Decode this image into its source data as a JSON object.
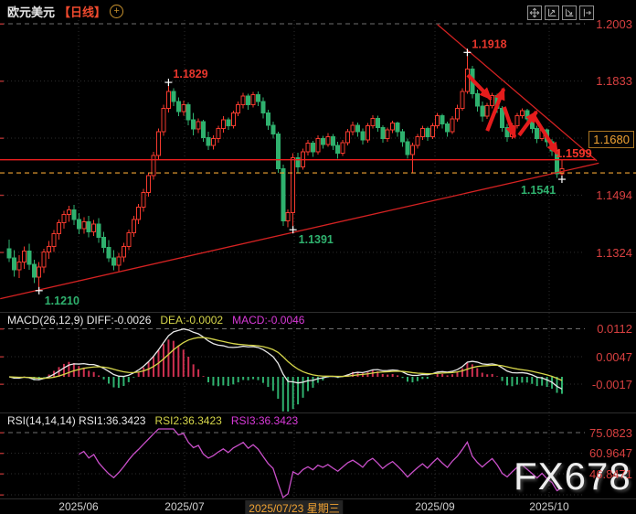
{
  "header": {
    "title": "欧元美元",
    "period": "【日线】",
    "crosshair_glyph": "+"
  },
  "toolbar": {
    "buttons": [
      {
        "name": "move-tool"
      },
      {
        "name": "y-axis-scale"
      },
      {
        "name": "x-axis-scale"
      },
      {
        "name": "shift-right"
      }
    ]
  },
  "main_chart": {
    "price_axis_labels": [
      "1.2003",
      "1.1833",
      "1.1494",
      "1.1324"
    ],
    "current_price_label": "1.1680",
    "support_label": "1.1599"
  },
  "macd": {
    "header": "MACD(26,12,9) DIFF:-0.0026",
    "dea_label": "DEA:-0.0002",
    "macd_label": "MACD:-0.0046",
    "axis_labels": [
      "0.0112",
      "0.0047",
      "-0.0017"
    ]
  },
  "rsi": {
    "header": "RSI(14,14,14) RSI1:36.3423",
    "rsi2_label": "RSI2:36.3423",
    "rsi3_label": "RSI3:36.3423",
    "axis_labels": [
      "75.0823",
      "60.9647",
      "46.8471"
    ]
  },
  "time_axis": {
    "labels": [
      "2025/06",
      "2025/07",
      "2025/09",
      "2025/10"
    ],
    "highlight_label": "2025/07/23 星期三"
  },
  "watermark": "FX678",
  "colors": {
    "up": "#f53a2e",
    "down": "#2fb16e",
    "axis_red": "#d84040",
    "accent_orange": "#f0a232",
    "support_red": "#ef1f1f",
    "trend_red": "#d42222",
    "annotation_red": "#e51c1c",
    "diff_white": "#e8e8e8",
    "dea_yellow": "#d6d64a",
    "hist_pos": "#cf3050",
    "hist_neg": "#2fb16e",
    "rsi_magenta": "#c94fc9",
    "marker_white": "#ffffff"
  },
  "chart_data": {
    "type": "candlestick",
    "title": "欧元美元 日线",
    "y_axis": {
      "ticks": [
        1.2003,
        1.1833,
        1.1494,
        1.1324
      ],
      "ylim": [
        1.1147,
        1.2014
      ],
      "current_price": 1.168
    },
    "x_axis": {
      "labels": [
        "2025/06",
        "2025/07",
        "2025/07/23 星期三",
        "2025/09",
        "2025/10"
      ]
    },
    "candles": [
      [
        1.1335,
        1.1362,
        1.1295,
        1.1308
      ],
      [
        1.1308,
        1.133,
        1.1252,
        1.1272
      ],
      [
        1.1272,
        1.1315,
        1.1248,
        1.1295
      ],
      [
        1.1295,
        1.1342,
        1.1275,
        1.1328
      ],
      [
        1.1328,
        1.135,
        1.1272,
        1.1288
      ],
      [
        1.1288,
        1.1302,
        1.1232,
        1.125
      ],
      [
        1.125,
        1.1295,
        1.121,
        1.128
      ],
      [
        1.128,
        1.1335,
        1.1262,
        1.1325
      ],
      [
        1.1325,
        1.1358,
        1.1305,
        1.1342
      ],
      [
        1.1342,
        1.139,
        1.1325,
        1.138
      ],
      [
        1.138,
        1.1422,
        1.1362,
        1.1412
      ],
      [
        1.1412,
        1.1448,
        1.1395,
        1.1436
      ],
      [
        1.1436,
        1.1462,
        1.1415,
        1.145
      ],
      [
        1.145,
        1.1465,
        1.1405,
        1.1422
      ],
      [
        1.1422,
        1.144,
        1.1378,
        1.1395
      ],
      [
        1.1395,
        1.1428,
        1.138,
        1.1415
      ],
      [
        1.1415,
        1.1432,
        1.1368,
        1.1385
      ],
      [
        1.1385,
        1.142,
        1.1372,
        1.1408
      ],
      [
        1.1408,
        1.1425,
        1.1352,
        1.1368
      ],
      [
        1.1368,
        1.1385,
        1.1322,
        1.1338
      ],
      [
        1.1338,
        1.136,
        1.1295,
        1.1308
      ],
      [
        1.1308,
        1.133,
        1.127,
        1.1285
      ],
      [
        1.1285,
        1.1322,
        1.1268,
        1.131
      ],
      [
        1.131,
        1.1352,
        1.1295,
        1.1342
      ],
      [
        1.1342,
        1.1392,
        1.133,
        1.1382
      ],
      [
        1.1382,
        1.1432,
        1.137,
        1.1422
      ],
      [
        1.1422,
        1.1468,
        1.1408,
        1.1458
      ],
      [
        1.1458,
        1.1512,
        1.1445,
        1.1502
      ],
      [
        1.1502,
        1.1562,
        1.149,
        1.1552
      ],
      [
        1.1552,
        1.1622,
        1.154,
        1.1612
      ],
      [
        1.1612,
        1.1692,
        1.16,
        1.1682
      ],
      [
        1.1682,
        1.1762,
        1.167,
        1.1752
      ],
      [
        1.1752,
        1.1829,
        1.174,
        1.1802
      ],
      [
        1.1802,
        1.1812,
        1.1758,
        1.1772
      ],
      [
        1.1772,
        1.1785,
        1.1728,
        1.1742
      ],
      [
        1.1742,
        1.1775,
        1.173,
        1.1762
      ],
      [
        1.1762,
        1.177,
        1.1702,
        1.1718
      ],
      [
        1.1718,
        1.1738,
        1.1672,
        1.169
      ],
      [
        1.169,
        1.1722,
        1.1678,
        1.1712
      ],
      [
        1.1712,
        1.1718,
        1.1652,
        1.1665
      ],
      [
        1.1665,
        1.1682,
        1.1628,
        1.1642
      ],
      [
        1.1642,
        1.1672,
        1.163,
        1.1662
      ],
      [
        1.1662,
        1.17,
        1.165,
        1.1692
      ],
      [
        1.1692,
        1.1728,
        1.168,
        1.1718
      ],
      [
        1.1718,
        1.1725,
        1.1688,
        1.17
      ],
      [
        1.17,
        1.1745,
        1.1692,
        1.1738
      ],
      [
        1.1738,
        1.1772,
        1.1728,
        1.1762
      ],
      [
        1.1762,
        1.1798,
        1.1752,
        1.1788
      ],
      [
        1.1788,
        1.1795,
        1.1748,
        1.1762
      ],
      [
        1.1762,
        1.18,
        1.1755,
        1.1792
      ],
      [
        1.1792,
        1.1802,
        1.1758,
        1.1772
      ],
      [
        1.1772,
        1.1785,
        1.1722,
        1.1738
      ],
      [
        1.1738,
        1.1748,
        1.1688,
        1.1702
      ],
      [
        1.1702,
        1.1712,
        1.1662,
        1.1675
      ],
      [
        1.1675,
        1.1682,
        1.156,
        1.1572
      ],
      [
        1.1572,
        1.1585,
        1.1402,
        1.1418
      ],
      [
        1.1418,
        1.1452,
        1.1398,
        1.1442
      ],
      [
        1.1442,
        1.1618,
        1.1391,
        1.1605
      ],
      [
        1.1605,
        1.162,
        1.1562,
        1.1578
      ],
      [
        1.1578,
        1.1632,
        1.157,
        1.1622
      ],
      [
        1.1622,
        1.1658,
        1.1612,
        1.1648
      ],
      [
        1.1648,
        1.1655,
        1.1608,
        1.1622
      ],
      [
        1.1622,
        1.1672,
        1.1615,
        1.1662
      ],
      [
        1.1662,
        1.167,
        1.1632,
        1.1645
      ],
      [
        1.1645,
        1.1678,
        1.1638,
        1.1668
      ],
      [
        1.1668,
        1.1675,
        1.1628,
        1.1642
      ],
      [
        1.1642,
        1.1652,
        1.1602,
        1.1618
      ],
      [
        1.1618,
        1.1658,
        1.161,
        1.165
      ],
      [
        1.165,
        1.169,
        1.1642,
        1.1682
      ],
      [
        1.1682,
        1.1712,
        1.1672,
        1.1702
      ],
      [
        1.1702,
        1.171,
        1.1668,
        1.1682
      ],
      [
        1.1682,
        1.1692,
        1.1645,
        1.1658
      ],
      [
        1.1658,
        1.1708,
        1.165,
        1.17
      ],
      [
        1.17,
        1.1732,
        1.1692,
        1.1722
      ],
      [
        1.1722,
        1.173,
        1.1682,
        1.1695
      ],
      [
        1.1695,
        1.1702,
        1.165,
        1.1662
      ],
      [
        1.1662,
        1.1695,
        1.1652,
        1.1688
      ],
      [
        1.1688,
        1.1715,
        1.1678,
        1.1708
      ],
      [
        1.1708,
        1.1712,
        1.1668,
        1.1682
      ],
      [
        1.1682,
        1.169,
        1.1638,
        1.1652
      ],
      [
        1.1652,
        1.1662,
        1.1602,
        1.1615
      ],
      [
        1.1615,
        1.165,
        1.1562,
        1.1642
      ],
      [
        1.1642,
        1.1675,
        1.1632,
        1.1668
      ],
      [
        1.1668,
        1.17,
        1.1658,
        1.1692
      ],
      [
        1.1692,
        1.1698,
        1.1655,
        1.1668
      ],
      [
        1.1668,
        1.1708,
        1.166,
        1.17
      ],
      [
        1.17,
        1.1738,
        1.1692,
        1.173
      ],
      [
        1.173,
        1.1736,
        1.1692,
        1.1705
      ],
      [
        1.1705,
        1.1712,
        1.1668,
        1.1682
      ],
      [
        1.1682,
        1.1728,
        1.1675,
        1.172
      ],
      [
        1.172,
        1.1762,
        1.1712,
        1.1752
      ],
      [
        1.1752,
        1.1812,
        1.1745,
        1.1802
      ],
      [
        1.1802,
        1.1918,
        1.1795,
        1.1868
      ],
      [
        1.1868,
        1.1878,
        1.1782,
        1.1795
      ],
      [
        1.1795,
        1.1808,
        1.1742,
        1.1758
      ],
      [
        1.1758,
        1.1772,
        1.1712,
        1.1728
      ],
      [
        1.1728,
        1.1768,
        1.172,
        1.176
      ],
      [
        1.176,
        1.1798,
        1.1752,
        1.179
      ],
      [
        1.179,
        1.1795,
        1.1738,
        1.1752
      ],
      [
        1.1752,
        1.1758,
        1.1682,
        1.1695
      ],
      [
        1.1695,
        1.1705,
        1.1652,
        1.1668
      ],
      [
        1.1668,
        1.1708,
        1.166,
        1.17
      ],
      [
        1.17,
        1.1738,
        1.1692,
        1.173
      ],
      [
        1.173,
        1.1752,
        1.1722,
        1.1745
      ],
      [
        1.1745,
        1.175,
        1.1708,
        1.172
      ],
      [
        1.172,
        1.1728,
        1.1678,
        1.1692
      ],
      [
        1.1692,
        1.17,
        1.1648,
        1.1662
      ],
      [
        1.1662,
        1.1695,
        1.1655,
        1.1688
      ],
      [
        1.1688,
        1.1692,
        1.1638,
        1.1652
      ],
      [
        1.1652,
        1.166,
        1.161,
        1.1625
      ],
      [
        1.1625,
        1.1632,
        1.1545,
        1.1558
      ],
      [
        1.1558,
        1.1599,
        1.1541,
        1.1572
      ]
    ],
    "extremes": [
      {
        "index": 32,
        "price": 1.1829,
        "label": "1.1829",
        "kind": "high",
        "label_pos": "above-right"
      },
      {
        "index": 6,
        "price": 1.121,
        "label": "1.1210",
        "kind": "low",
        "label_pos": "below-right"
      },
      {
        "index": 57,
        "price": 1.1391,
        "label": "1.1391",
        "kind": "low",
        "label_pos": "below-right"
      },
      {
        "index": 92,
        "price": 1.1918,
        "label": "1.1918",
        "kind": "high",
        "label_pos": "above-right"
      },
      {
        "index": 111,
        "price": 1.1541,
        "label": "1.1541",
        "kind": "low",
        "label_pos": "below-left"
      }
    ],
    "drawings": {
      "support_line": {
        "price": 1.1599,
        "label": "1.1599"
      },
      "last_price_line": {
        "price": 1.156
      },
      "descending_trendline": {
        "from": {
          "i": 86,
          "p": 1.2001
        },
        "to": {
          "i": 118,
          "p": 1.1596
        }
      },
      "ascending_trendline": {
        "from": {
          "i": -1.8,
          "p": 1.1186
        },
        "to": {
          "i": 118.4,
          "p": 1.1589
        }
      },
      "arrows": [
        {
          "from": {
            "i": 92.1,
            "p": 1.1851
          },
          "to": {
            "i": 96.7,
            "p": 1.178
          }
        },
        {
          "from": {
            "i": 96.0,
            "p": 1.1685
          },
          "to": {
            "i": 99.3,
            "p": 1.181
          }
        },
        {
          "from": {
            "i": 99.4,
            "p": 1.1756
          },
          "to": {
            "i": 101.5,
            "p": 1.1666
          }
        },
        {
          "from": {
            "i": 102.4,
            "p": 1.1672
          },
          "to": {
            "i": 105.9,
            "p": 1.1742
          }
        },
        {
          "from": {
            "i": 105.5,
            "p": 1.1726
          },
          "to": {
            "i": 110.1,
            "p": 1.1617
          }
        }
      ]
    },
    "indicators": {
      "macd": {
        "fast": 12,
        "slow": 26,
        "signal": 9,
        "last_diff": -0.0026,
        "last_dea": -0.0002,
        "last_macd": -0.0046,
        "axis_ticks": [
          0.0112,
          0.0047,
          -0.0017
        ]
      },
      "rsi": {
        "periods": [
          14,
          14,
          14
        ],
        "last": 36.3423,
        "axis_ticks": [
          75.0823,
          60.9647,
          46.8471
        ]
      }
    }
  }
}
